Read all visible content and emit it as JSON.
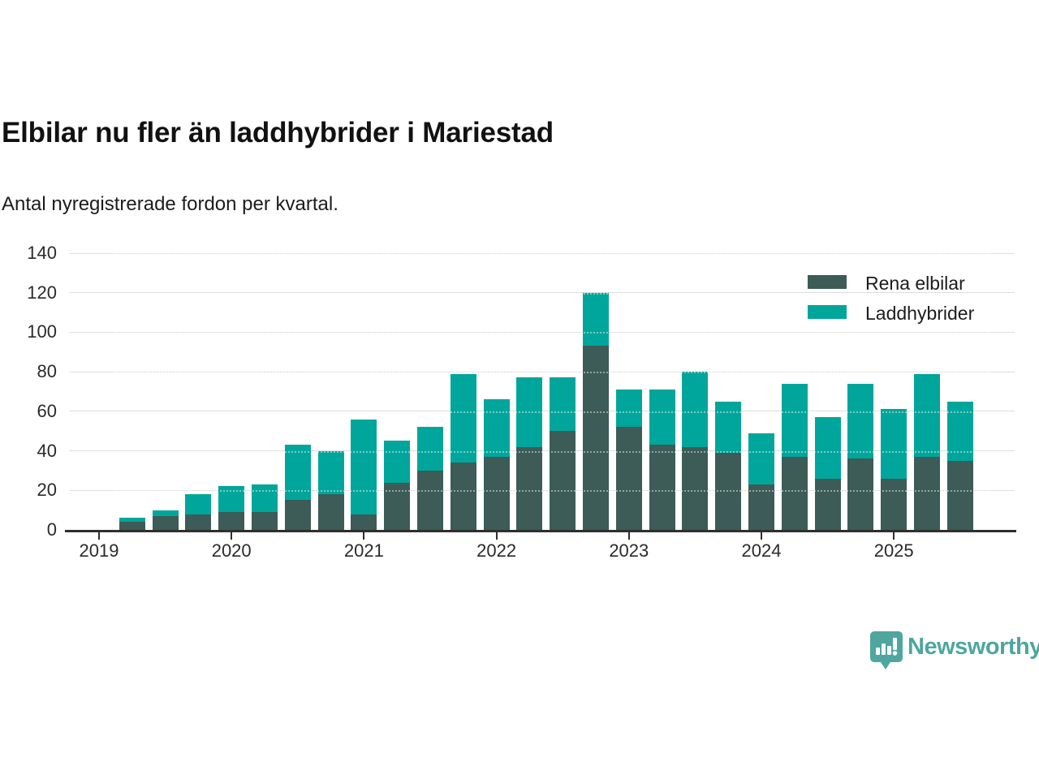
{
  "header": {
    "title": "Elbilar nu fler än laddhybrider i Mariestad",
    "subtitle": "Antal nyregistrerade fordon per kvartal."
  },
  "legend": {
    "items": [
      {
        "label": "Rena elbilar",
        "color": "#3d5b57"
      },
      {
        "label": "Laddhybrider",
        "color": "#00a69b"
      }
    ]
  },
  "footer": {
    "brand": "Newsworthy",
    "brand_color": "#4ea69f",
    "logo_icon": "newsworthy-speech-bubble-chart"
  },
  "chart_data": {
    "type": "bar",
    "stacked": true,
    "title": "Elbilar nu fler än laddhybrider i Mariestad",
    "subtitle": "Antal nyregistrerade fordon per kvartal.",
    "categories": [
      "2019 Q2",
      "2019 Q3",
      "2019 Q4",
      "2020 Q1",
      "2020 Q2",
      "2020 Q3",
      "2020 Q4",
      "2021 Q1",
      "2021 Q2",
      "2021 Q3",
      "2021 Q4",
      "2022 Q1",
      "2022 Q2",
      "2022 Q3",
      "2022 Q4",
      "2023 Q1",
      "2023 Q2",
      "2023 Q3",
      "2023 Q4",
      "2024 Q1",
      "2024 Q2",
      "2024 Q3",
      "2024 Q4",
      "2025 Q1",
      "2025 Q2",
      "2025 Q3"
    ],
    "series": [
      {
        "name": "Rena elbilar",
        "color": "#3d5b57",
        "values": [
          4,
          7,
          8,
          9,
          9,
          15,
          18,
          8,
          24,
          30,
          34,
          37,
          42,
          50,
          93,
          52,
          43,
          42,
          39,
          23,
          37,
          26,
          36,
          26,
          37,
          35
        ]
      },
      {
        "name": "Laddhybrider",
        "color": "#00a69b",
        "values": [
          2,
          3,
          10,
          13,
          14,
          28,
          22,
          48,
          21,
          22,
          45,
          29,
          35,
          27,
          27,
          19,
          28,
          38,
          26,
          26,
          37,
          31,
          38,
          35,
          42,
          30
        ]
      }
    ],
    "year_ticks": [
      "2019",
      "2020",
      "2021",
      "2022",
      "2023",
      "2024",
      "2025"
    ],
    "first_bar_quarter_offset": 1,
    "ylim": [
      0,
      140
    ],
    "ystep": 20,
    "grid": true,
    "legend_position": "top-right"
  }
}
